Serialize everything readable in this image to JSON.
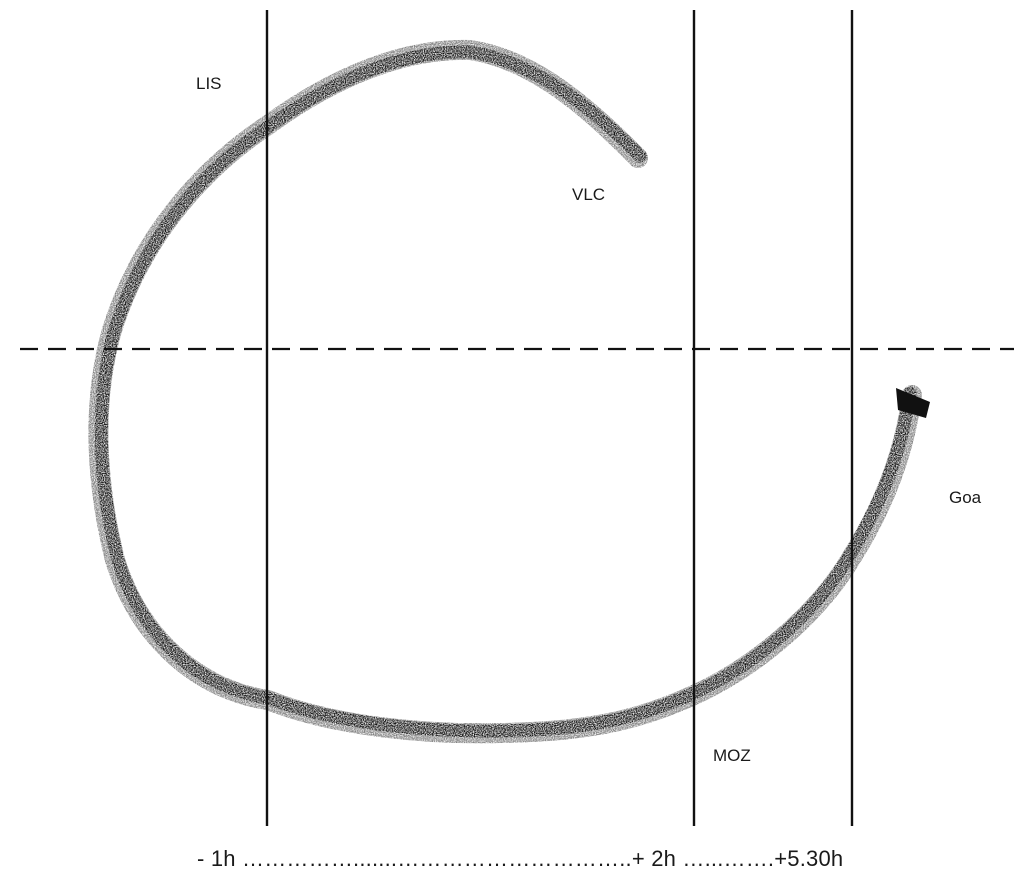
{
  "labels": {
    "lis": "LIS",
    "vlc": "VLC",
    "goa": "Goa",
    "moz": "MOZ"
  },
  "timeline": "- 1h …………….......…………………………..+ 2h …...…….+5.30h",
  "colors": {
    "stroke": "#111111",
    "background": "#ffffff"
  }
}
